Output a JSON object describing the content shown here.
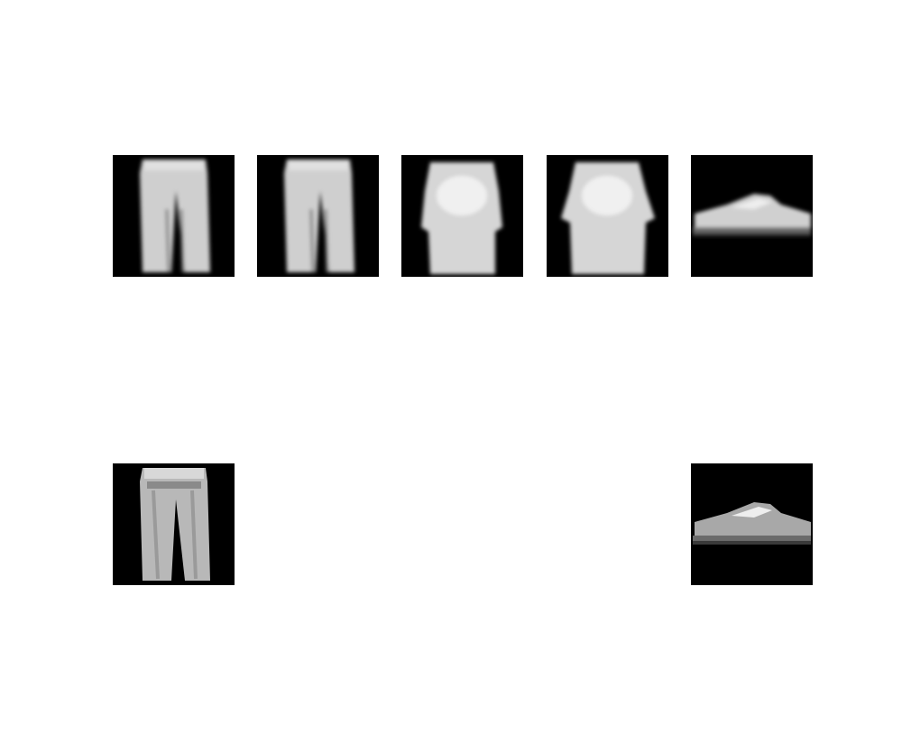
{
  "figure": {
    "background": "#ffffff",
    "rows": [
      {
        "panels": [
          {
            "content": "trousers-image",
            "style": "blurred"
          },
          {
            "content": "trousers-image",
            "style": "blurred"
          },
          {
            "content": "shirt-image",
            "style": "blurred"
          },
          {
            "content": "shirt-image",
            "style": "blurred"
          },
          {
            "content": "sneaker-image",
            "style": "blurred"
          }
        ]
      },
      {
        "panels": [
          {
            "content": "trousers-image",
            "style": "sharp"
          },
          {
            "content": "sneaker-image",
            "style": "sharp"
          }
        ]
      }
    ]
  }
}
